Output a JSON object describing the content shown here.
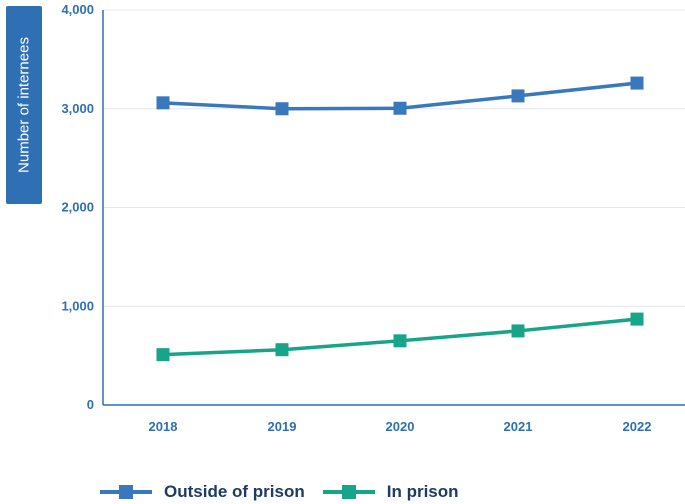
{
  "chart_data": {
    "type": "line",
    "categories": [
      "2018",
      "2019",
      "2020",
      "2021",
      "2022"
    ],
    "series": [
      {
        "name": "Outside of prison",
        "color": "#3a78bd",
        "values": [
          3060,
          3000,
          3005,
          3130,
          3260
        ]
      },
      {
        "name": "In prison",
        "color": "#17a58a",
        "values": [
          510,
          560,
          650,
          750,
          870
        ]
      }
    ],
    "ylabel": "Number of internees",
    "xlabel": "",
    "ylim": [
      0,
      4000
    ],
    "yticks": [
      0,
      1000,
      2000,
      3000,
      4000
    ],
    "ytick_labels": [
      "0",
      "1,000",
      "2,000",
      "3,000",
      "4,000"
    ],
    "grid": true,
    "legend_position": "bottom-left"
  }
}
